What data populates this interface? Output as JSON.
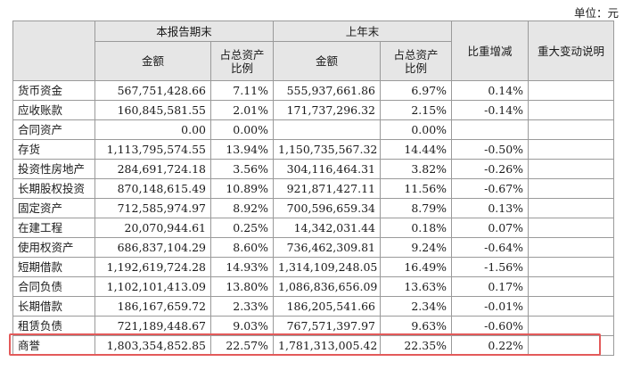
{
  "unit_label": "单位：元",
  "headers": {
    "item": "",
    "current_period_end": "本报告期末",
    "prior_year_end": "上年末",
    "ratio_change": "比重增减",
    "explanation": "重大变动说明",
    "amount": "金额",
    "pct_of_assets_line1": "占总资产",
    "pct_of_assets_line2": "比例"
  },
  "rows": [
    {
      "item": "货币资金",
      "cur_amount": "567,751,428.66",
      "cur_pct": "7.11%",
      "prev_amount": "555,937,661.86",
      "prev_pct": "6.97%",
      "change": "0.14%",
      "note": ""
    },
    {
      "item": "应收账款",
      "cur_amount": "160,845,581.55",
      "cur_pct": "2.01%",
      "prev_amount": "171,737,296.32",
      "prev_pct": "2.15%",
      "change": "-0.14%",
      "note": ""
    },
    {
      "item": "合同资产",
      "cur_amount": "0.00",
      "cur_pct": "0.00%",
      "prev_amount": "",
      "prev_pct": "0.00%",
      "change": "",
      "note": ""
    },
    {
      "item": "存货",
      "cur_amount": "1,113,795,574.55",
      "cur_pct": "13.94%",
      "prev_amount": "1,150,735,567.32",
      "prev_pct": "14.44%",
      "change": "-0.50%",
      "note": ""
    },
    {
      "item": "投资性房地产",
      "cur_amount": "284,691,724.18",
      "cur_pct": "3.56%",
      "prev_amount": "304,116,464.31",
      "prev_pct": "3.82%",
      "change": "-0.26%",
      "note": ""
    },
    {
      "item": "长期股权投资",
      "cur_amount": "870,148,615.49",
      "cur_pct": "10.89%",
      "prev_amount": "921,871,427.11",
      "prev_pct": "11.56%",
      "change": "-0.67%",
      "note": ""
    },
    {
      "item": "固定资产",
      "cur_amount": "712,585,974.97",
      "cur_pct": "8.92%",
      "prev_amount": "700,596,659.34",
      "prev_pct": "8.79%",
      "change": "0.13%",
      "note": ""
    },
    {
      "item": "在建工程",
      "cur_amount": "20,070,944.61",
      "cur_pct": "0.25%",
      "prev_amount": "14,342,031.44",
      "prev_pct": "0.18%",
      "change": "0.07%",
      "note": ""
    },
    {
      "item": "使用权资产",
      "cur_amount": "686,837,104.29",
      "cur_pct": "8.60%",
      "prev_amount": "736,462,309.81",
      "prev_pct": "9.24%",
      "change": "-0.64%",
      "note": ""
    },
    {
      "item": "短期借款",
      "cur_amount": "1,192,619,724.28",
      "cur_pct": "14.93%",
      "prev_amount": "1,314,109,248.05",
      "prev_pct": "16.49%",
      "change": "-1.56%",
      "note": ""
    },
    {
      "item": "合同负债",
      "cur_amount": "1,102,101,413.09",
      "cur_pct": "13.80%",
      "prev_amount": "1,086,836,656.09",
      "prev_pct": "13.63%",
      "change": "0.17%",
      "note": ""
    },
    {
      "item": "长期借款",
      "cur_amount": "186,167,659.72",
      "cur_pct": "2.33%",
      "prev_amount": "186,205,541.66",
      "prev_pct": "2.34%",
      "change": "-0.01%",
      "note": ""
    },
    {
      "item": "租赁负债",
      "cur_amount": "721,189,448.67",
      "cur_pct": "9.03%",
      "prev_amount": "767,571,397.97",
      "prev_pct": "9.63%",
      "change": "-0.60%",
      "note": ""
    },
    {
      "item": "商誉",
      "cur_amount": "1,803,354,852.85",
      "cur_pct": "22.57%",
      "prev_amount": "1,781,313,005.42",
      "prev_pct": "22.35%",
      "change": "0.22%",
      "note": ""
    }
  ],
  "highlight_color": "#e35a5a"
}
